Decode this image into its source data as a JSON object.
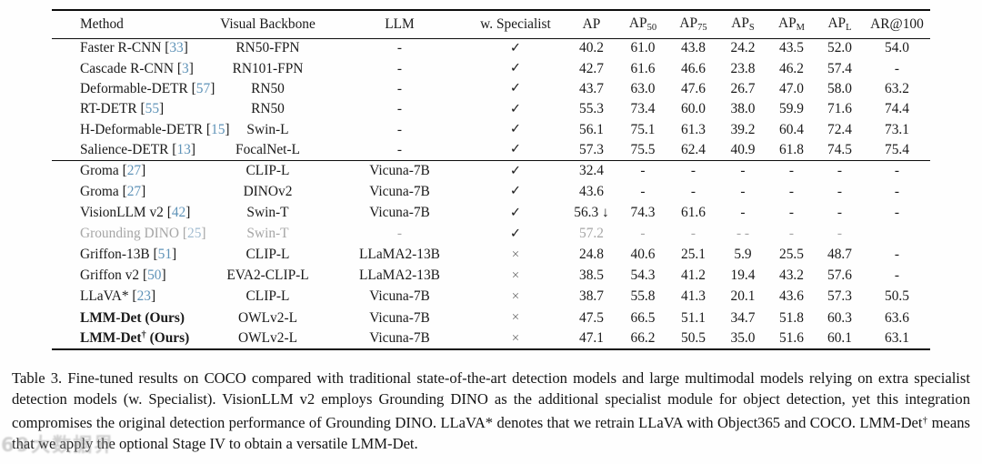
{
  "colors": {
    "text": "#1a1a1a",
    "citation_blue": "#5f93b8",
    "gray_row": "#a6a6a6",
    "rule": "#0d0d0d"
  },
  "table": {
    "header": {
      "method": "Method",
      "backbone": "Visual Backbone",
      "llm": "LLM",
      "specialist": "w. Specialist",
      "metrics": [
        {
          "t": "AP"
        },
        {
          "t": "AP",
          "sub": "50"
        },
        {
          "t": "AP",
          "sub": "75"
        },
        {
          "t": "AP",
          "sub": "S"
        },
        {
          "t": "AP",
          "sub": "M"
        },
        {
          "t": "AP",
          "sub": "L"
        },
        {
          "t": "AR@100"
        }
      ]
    },
    "groups": [
      {
        "rows": [
          {
            "method": "Faster R-CNN",
            "cite": "33",
            "backbone": "RN50-FPN",
            "llm": "-",
            "specialist": "✓",
            "values": [
              "40.2",
              "61.0",
              "43.8",
              "24.2",
              "43.5",
              "52.0",
              "54.0"
            ]
          },
          {
            "method": "Cascade R-CNN",
            "cite": "3",
            "backbone": "RN101-FPN",
            "llm": "-",
            "specialist": "✓",
            "values": [
              "42.7",
              "61.6",
              "46.6",
              "23.8",
              "46.2",
              "57.4",
              "-"
            ]
          },
          {
            "method": "Deformable-DETR",
            "cite": "57",
            "backbone": "RN50",
            "llm": "-",
            "specialist": "✓",
            "values": [
              "43.7",
              "63.0",
              "47.6",
              "26.7",
              "47.0",
              "58.0",
              "63.2"
            ]
          },
          {
            "method": "RT-DETR",
            "cite": "55",
            "backbone": "RN50",
            "llm": "-",
            "specialist": "✓",
            "values": [
              "55.3",
              "73.4",
              "60.0",
              "38.0",
              "59.9",
              "71.6",
              "74.4"
            ]
          },
          {
            "method": "H-Deformable-DETR",
            "cite": "15",
            "backbone": "Swin-L",
            "llm": "-",
            "specialist": "✓",
            "values": [
              "56.1",
              "75.1",
              "61.3",
              "39.2",
              "60.4",
              "72.4",
              "73.1"
            ]
          },
          {
            "method": "Salience-DETR",
            "cite": "13",
            "backbone": "FocalNet-L",
            "llm": "-",
            "specialist": "✓",
            "values": [
              "57.3",
              "75.5",
              "62.4",
              "40.9",
              "61.8",
              "74.5",
              "75.4"
            ]
          }
        ]
      },
      {
        "rows": [
          {
            "method": "Groma",
            "cite": "27",
            "backbone": "CLIP-L",
            "llm": "Vicuna-7B",
            "specialist": "✓",
            "values": [
              "32.4",
              "-",
              "-",
              "-",
              "-",
              "-",
              "-"
            ]
          },
          {
            "method": "Groma",
            "cite": "27",
            "backbone": "DINOv2",
            "llm": "Vicuna-7B",
            "specialist": "✓",
            "values": [
              "43.6",
              "-",
              "-",
              "-",
              "-",
              "-",
              "-"
            ]
          },
          {
            "method": "VisionLLM v2",
            "cite": "42",
            "backbone": "Swin-T",
            "llm": "Vicuna-7B",
            "specialist": "✓",
            "values": [
              "56.3 ↓",
              "74.3",
              "61.6",
              "-",
              "-",
              "-",
              "-"
            ]
          },
          {
            "method": "Grounding DINO",
            "cite": "25",
            "backbone": "Swin-T",
            "llm": "-",
            "specialist": "✓",
            "gray": true,
            "values": [
              "57.2",
              "-",
              "-",
              "- -",
              "-",
              "-",
              ""
            ]
          },
          {
            "method": "Griffon-13B",
            "cite": "51",
            "backbone": "CLIP-L",
            "llm": "LLaMA2-13B",
            "specialist": "×",
            "values": [
              "24.8",
              "40.6",
              "25.1",
              "5.9",
              "25.5",
              "48.7",
              "-"
            ]
          },
          {
            "method": "Griffon v2",
            "cite": "50",
            "backbone": "EVA2-CLIP-L",
            "llm": "LLaMA2-13B",
            "specialist": "×",
            "values": [
              "38.5",
              "54.3",
              "41.2",
              "19.4",
              "43.2",
              "57.6",
              "-"
            ]
          },
          {
            "method": "LLaVA*",
            "cite": "23",
            "backbone": "CLIP-L",
            "llm": "Vicuna-7B",
            "specialist": "×",
            "values": [
              "38.7",
              "55.8",
              "41.3",
              "20.1",
              "43.6",
              "57.3",
              "50.5"
            ]
          },
          {
            "method": "LMM-Det",
            "method_suffix": " (Ours)",
            "bold": true,
            "backbone": "OWLv2-L",
            "llm": "Vicuna-7B",
            "specialist": "×",
            "values": [
              "47.5",
              "66.5",
              "51.1",
              "34.7",
              "51.8",
              "60.3",
              "63.6"
            ]
          },
          {
            "method": "LMM-Det",
            "method_sup": "†",
            "method_suffix": " (Ours)",
            "bold": true,
            "backbone": "OWLv2-L",
            "llm": "Vicuna-7B",
            "specialist": "×",
            "values": [
              "47.1",
              "66.2",
              "50.5",
              "35.0",
              "51.6",
              "60.1",
              "63.1"
            ]
          }
        ]
      }
    ]
  },
  "caption": {
    "parts": [
      {
        "t": "Table 3. Fine-tuned results on COCO compared with traditional state-of-the-art detection models and large multimodal models relying on extra specialist detection models (w. Specialist). VisionLLM v2 employs Grounding DINO as the additional specialist module for object detection, yet this integration compromises the original detection performance of Grounding DINO. LLaVA* denotes that we retrain LLaVA with Object365 and COCO. LMM-Det"
      },
      {
        "t": "†",
        "sup": true
      },
      {
        "t": " means that we apply the optional Stage IV to obtain a versatile LMM-Det."
      }
    ]
  },
  "watermark": {
    "text": "69大数据界"
  }
}
